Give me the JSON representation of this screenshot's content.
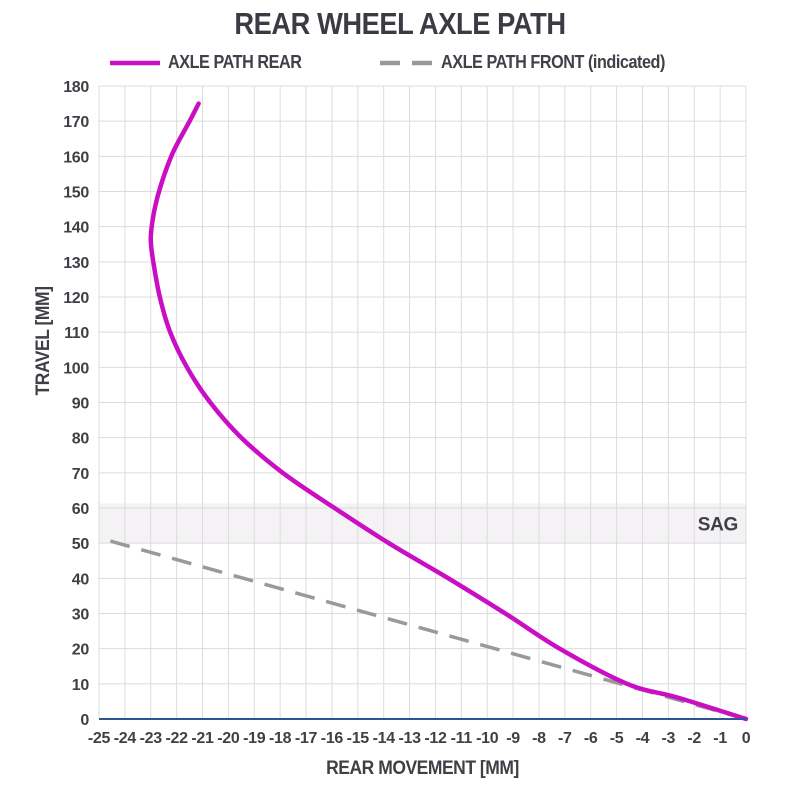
{
  "title": "REAR WHEEL AXLE PATH",
  "legend": {
    "items": [
      {
        "label": "AXLE PATH REAR",
        "color": "#CA0EC4",
        "style": "solid"
      },
      {
        "label": "AXLE PATH FRONT (indicated)",
        "color": "#999999",
        "style": "dashed"
      }
    ]
  },
  "chart_data": {
    "type": "line",
    "title": "REAR WHEEL AXLE PATH",
    "xlabel": "REAR MOVEMENT [MM]",
    "ylabel": "TRAVEL [MM]",
    "xlim": [
      -25,
      0
    ],
    "ylim": [
      0,
      180
    ],
    "x_ticks": [
      -25,
      -24,
      -23,
      -22,
      -21,
      -20,
      -19,
      -18,
      -17,
      -16,
      -15,
      -14,
      -13,
      -12,
      -11,
      -10,
      -9,
      -8,
      -7,
      -6,
      -5,
      -4,
      -3,
      -2,
      -1,
      0
    ],
    "y_ticks": [
      0,
      10,
      20,
      30,
      40,
      50,
      60,
      70,
      80,
      90,
      100,
      110,
      120,
      130,
      140,
      150,
      160,
      170,
      180
    ],
    "grid": true,
    "legend_position": "top",
    "series": [
      {
        "name": "AXLE PATH REAR",
        "color": "#CA0EC4",
        "style": "solid",
        "points": [
          [
            0,
            0
          ],
          [
            -2.6,
            6
          ],
          [
            -4.6,
            10
          ],
          [
            -7.2,
            20
          ],
          [
            -9.3,
            30
          ],
          [
            -11.5,
            40
          ],
          [
            -13.8,
            50
          ],
          [
            -15.9,
            60
          ],
          [
            -17.9,
            70
          ],
          [
            -19.5,
            80
          ],
          [
            -20.7,
            90
          ],
          [
            -21.6,
            100
          ],
          [
            -22.25,
            110
          ],
          [
            -22.65,
            120
          ],
          [
            -22.9,
            130
          ],
          [
            -23.0,
            137
          ],
          [
            -22.85,
            145
          ],
          [
            -22.6,
            152
          ],
          [
            -22.15,
            161
          ],
          [
            -21.5,
            170
          ],
          [
            -21.15,
            175
          ]
        ]
      },
      {
        "name": "AXLE PATH FRONT (indicated)",
        "color": "#999999",
        "style": "dashed",
        "points": [
          [
            0,
            0
          ],
          [
            -25,
            51.5
          ]
        ]
      }
    ],
    "sag_band": {
      "label": "SAG",
      "y_from": 50,
      "y_to": 61.3,
      "color": "#F4F2F4",
      "label_color": "#3B3B43"
    },
    "colors": {
      "grid": "#DCDCDC",
      "axis_line": "#2E5591",
      "text": "#3F3F46"
    }
  }
}
